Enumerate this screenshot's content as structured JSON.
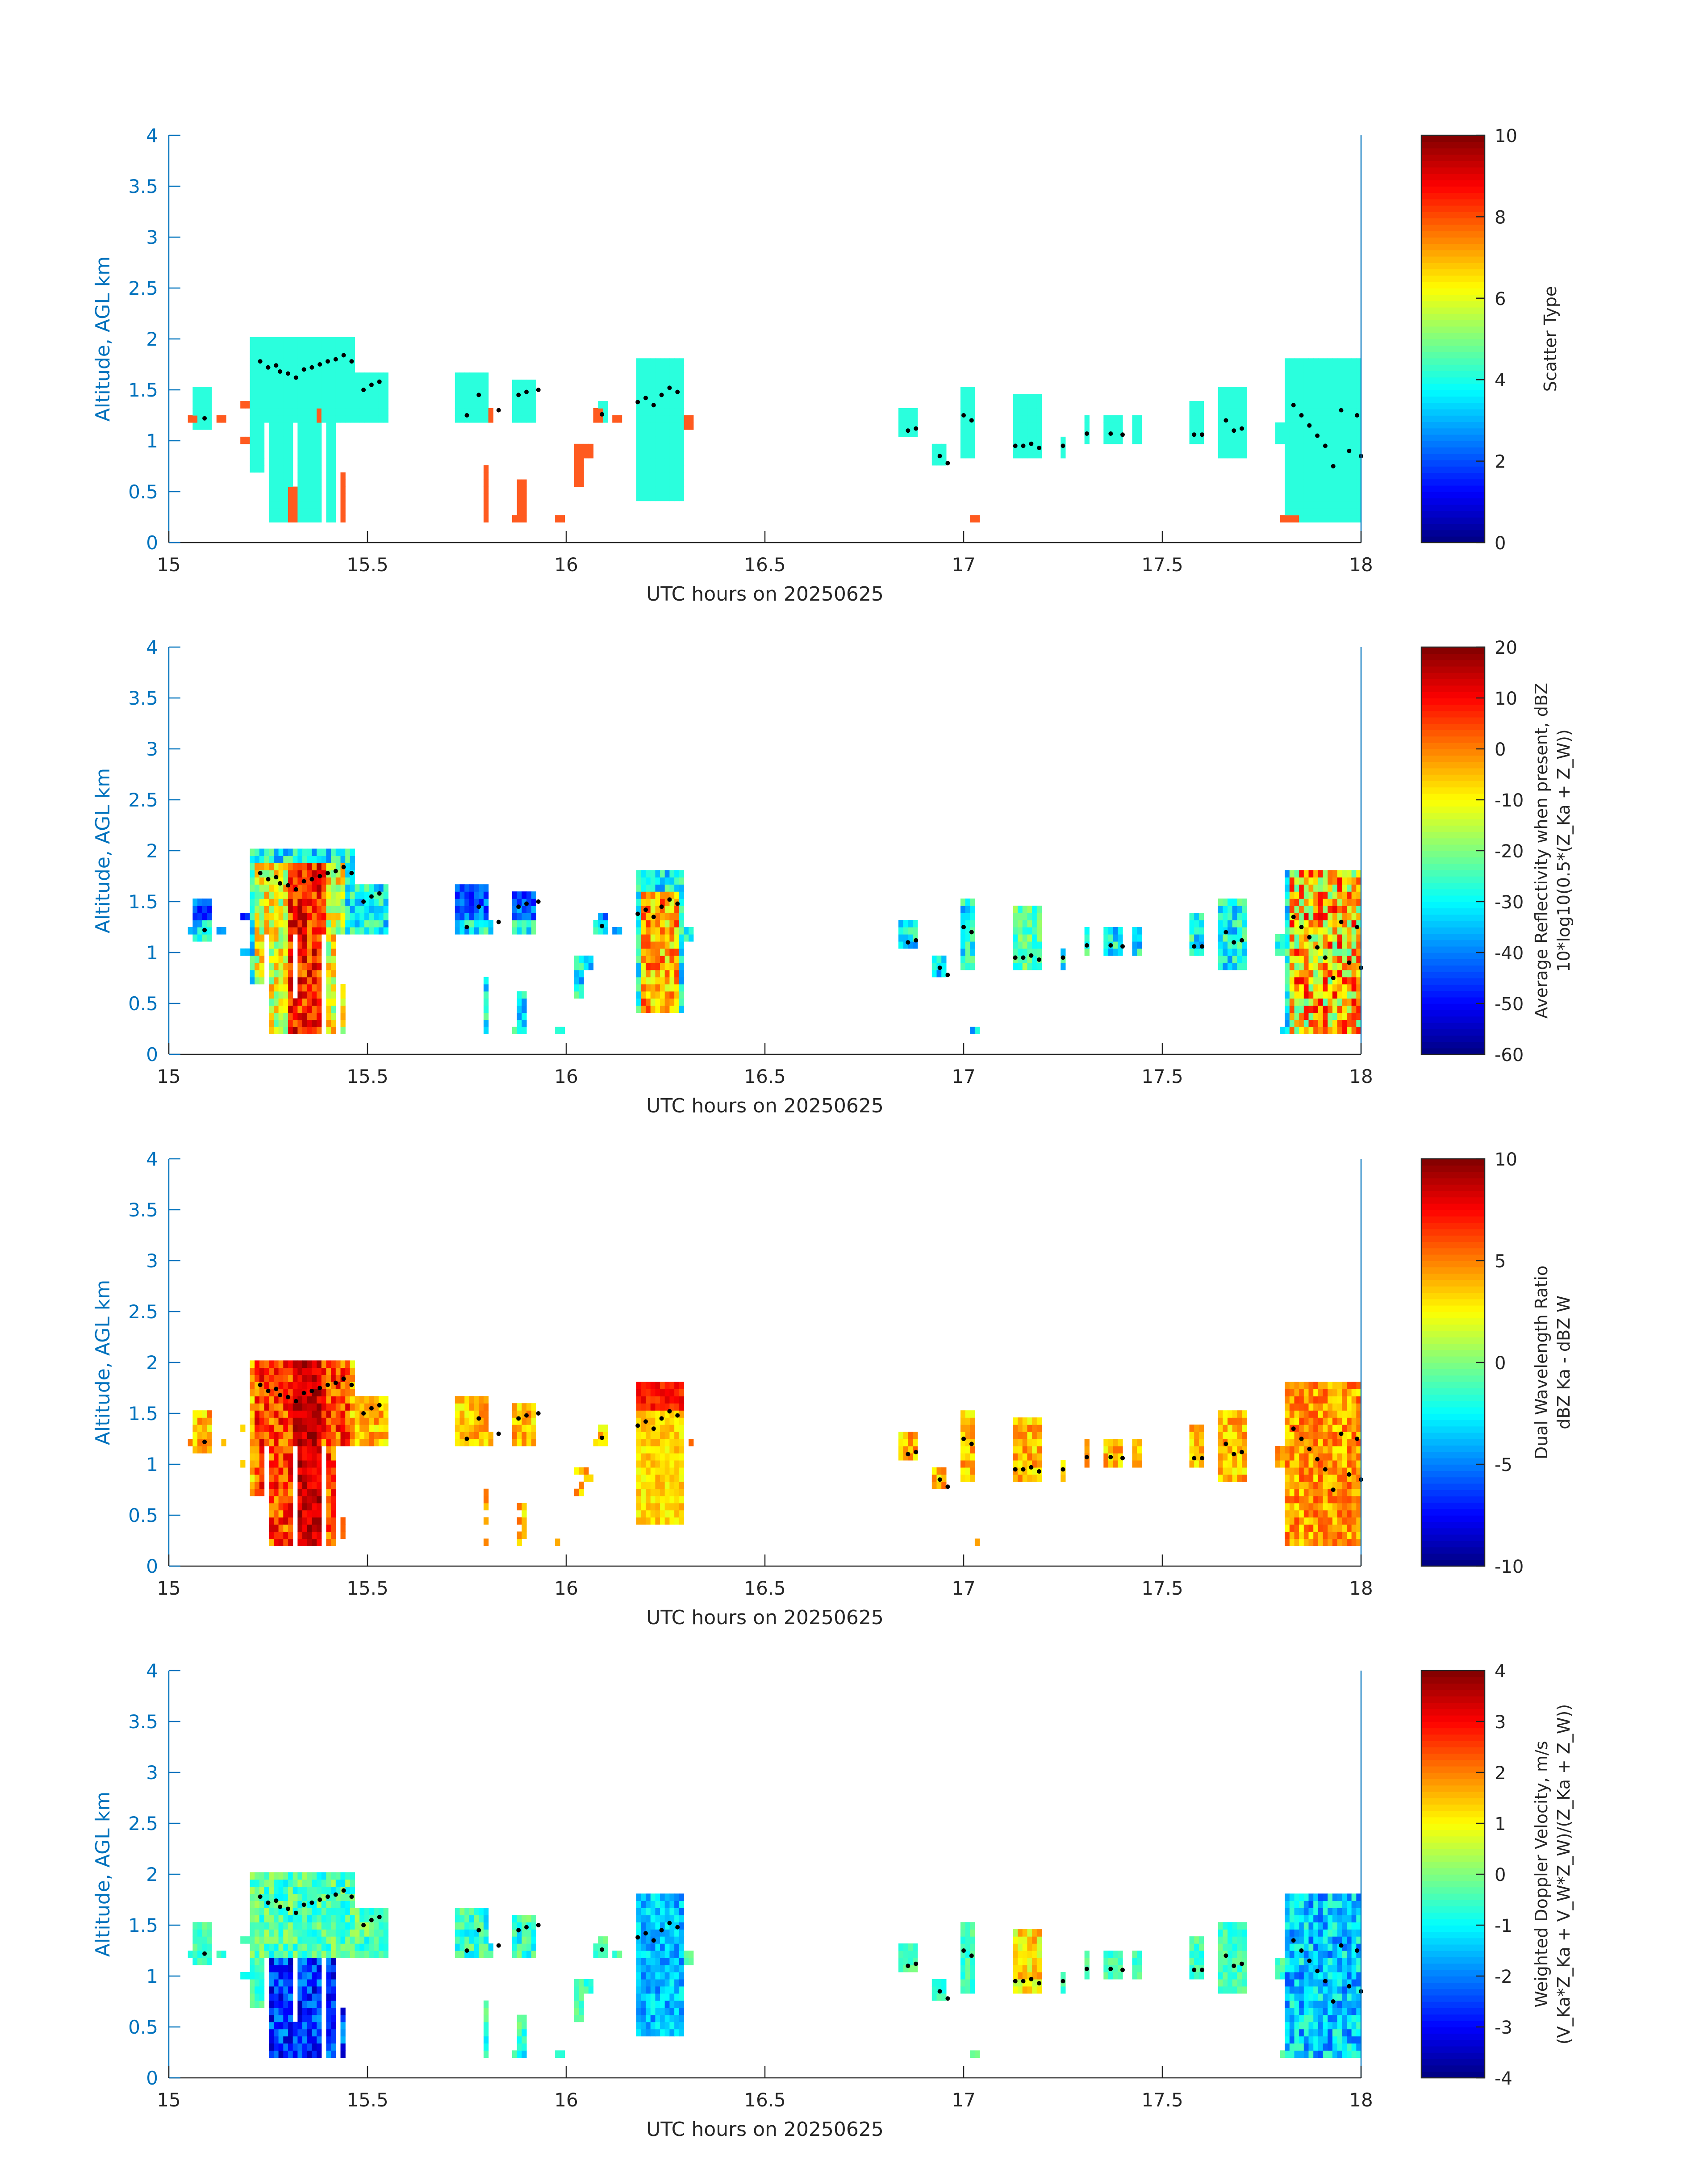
{
  "colors": {
    "axis_blue": "#0072bd",
    "axis_black": "#262626",
    "scatter_cloud": "#2affdd",
    "scatter_precip": "#ff5a1f",
    "marker": "#000000"
  },
  "colormap": "jet",
  "chart_data": [
    {
      "type": "heatmap",
      "id": "scatter",
      "xlabel": "UTC hours on 20250625",
      "ylabel": "Altitude, AGL km",
      "xlim": [
        15,
        18
      ],
      "ylim": [
        0,
        4
      ],
      "x_ticks": [
        "15",
        "15.5",
        "16",
        "16.5",
        "17",
        "17.5",
        "18"
      ],
      "y_ticks": [
        "0",
        "0.5",
        "1",
        "1.5",
        "2",
        "2.5",
        "3",
        "3.5",
        "4"
      ],
      "colorbar": {
        "label": "Scatter Type",
        "label_line2": "",
        "clim": [
          0,
          10
        ],
        "ticks": [
          "0",
          "2",
          "4",
          "6",
          "8",
          "10"
        ]
      }
    },
    {
      "type": "heatmap",
      "id": "reflectivity",
      "xlabel": "UTC hours on 20250625",
      "ylabel": "Altitude, AGL km",
      "xlim": [
        15,
        18
      ],
      "ylim": [
        0,
        4
      ],
      "x_ticks": [
        "15",
        "15.5",
        "16",
        "16.5",
        "17",
        "17.5",
        "18"
      ],
      "y_ticks": [
        "0",
        "0.5",
        "1",
        "1.5",
        "2",
        "2.5",
        "3",
        "3.5",
        "4"
      ],
      "colorbar": {
        "label": "Average Reflectivity when present, dBZ",
        "label_line2": "10*log10(0.5*(Z_Ka + Z_W))",
        "clim": [
          -60,
          20
        ],
        "ticks": [
          "-60",
          "-50",
          "-40",
          "-30",
          "-20",
          "-10",
          "0",
          "10",
          "20"
        ]
      }
    },
    {
      "type": "heatmap",
      "id": "dwr",
      "xlabel": "UTC hours on 20250625",
      "ylabel": "Altitude, AGL km",
      "xlim": [
        15,
        18
      ],
      "ylim": [
        0,
        4
      ],
      "x_ticks": [
        "15",
        "15.5",
        "16",
        "16.5",
        "17",
        "17.5",
        "18"
      ],
      "y_ticks": [
        "0",
        "0.5",
        "1",
        "1.5",
        "2",
        "2.5",
        "3",
        "3.5",
        "4"
      ],
      "colorbar": {
        "label": "Dual Wavelength Ratio",
        "label_line2": "dBZ Ka - dBZ W",
        "clim": [
          -10,
          10
        ],
        "ticks": [
          "-10",
          "-5",
          "0",
          "5",
          "10"
        ]
      }
    },
    {
      "type": "heatmap",
      "id": "velocity",
      "xlabel": "UTC hours on 20250625",
      "ylabel": "Altitude, AGL km",
      "xlim": [
        15,
        18
      ],
      "ylim": [
        0,
        4
      ],
      "x_ticks": [
        "15",
        "15.5",
        "16",
        "16.5",
        "17",
        "17.5",
        "18"
      ],
      "y_ticks": [
        "0",
        "0.5",
        "1",
        "1.5",
        "2",
        "2.5",
        "3",
        "3.5",
        "4"
      ],
      "colorbar": {
        "label": "Weighted Doppler Velocity, m/s",
        "label_line2": "(V_Ka*Z_Ka + V_W*Z_W)/(Z_Ka + Z_W))",
        "clim": [
          -4,
          4
        ],
        "ticks": [
          "-4",
          "-3",
          "-2",
          "-1",
          "0",
          "1",
          "2",
          "3",
          "4"
        ]
      }
    }
  ],
  "cloud_regions": [
    {
      "x0": 15.06,
      "x1": 15.11,
      "y0": 1.1,
      "y1": 1.5
    },
    {
      "x0": 15.2,
      "x1": 15.47,
      "y0": 1.2,
      "y1": 2.0
    },
    {
      "x0": 15.43,
      "x1": 15.55,
      "y0": 1.2,
      "y1": 1.65
    },
    {
      "x0": 15.21,
      "x1": 15.24,
      "y0": 0.7,
      "y1": 1.3
    },
    {
      "x0": 15.25,
      "x1": 15.31,
      "y0": 0.2,
      "y1": 1.3
    },
    {
      "x0": 15.33,
      "x1": 15.38,
      "y0": 0.2,
      "y1": 1.3
    },
    {
      "x0": 15.4,
      "x1": 15.42,
      "y0": 0.2,
      "y1": 1.3
    },
    {
      "x0": 15.72,
      "x1": 15.81,
      "y0": 1.15,
      "y1": 1.65
    },
    {
      "x0": 15.86,
      "x1": 15.92,
      "y0": 1.15,
      "y1": 1.6
    },
    {
      "x0": 16.08,
      "x1": 16.1,
      "y0": 1.15,
      "y1": 1.4
    },
    {
      "x0": 16.18,
      "x1": 16.3,
      "y0": 0.4,
      "y1": 1.8
    },
    {
      "x0": 16.84,
      "x1": 16.89,
      "y0": 1.05,
      "y1": 1.3
    },
    {
      "x0": 16.92,
      "x1": 16.96,
      "y0": 0.75,
      "y1": 0.95
    },
    {
      "x0": 16.99,
      "x1": 17.03,
      "y0": 0.85,
      "y1": 1.55
    },
    {
      "x0": 17.12,
      "x1": 17.2,
      "y0": 0.85,
      "y1": 1.45
    },
    {
      "x0": 17.24,
      "x1": 17.26,
      "y0": 0.85,
      "y1": 1.05
    },
    {
      "x0": 17.3,
      "x1": 17.32,
      "y0": 1.0,
      "y1": 1.25
    },
    {
      "x0": 17.35,
      "x1": 17.4,
      "y0": 1.0,
      "y1": 1.25
    },
    {
      "x0": 17.43,
      "x1": 17.45,
      "y0": 1.0,
      "y1": 1.25
    },
    {
      "x0": 17.57,
      "x1": 17.6,
      "y0": 1.0,
      "y1": 1.4
    },
    {
      "x0": 17.64,
      "x1": 17.71,
      "y0": 0.85,
      "y1": 1.55
    },
    {
      "x0": 17.78,
      "x1": 17.81,
      "y0": 1.0,
      "y1": 1.15
    },
    {
      "x0": 17.81,
      "x1": 18.0,
      "y0": 0.2,
      "y1": 1.8
    }
  ],
  "precip_regions": [
    {
      "x0": 15.05,
      "x1": 15.07,
      "y0": 1.15,
      "y1": 1.25
    },
    {
      "x0": 15.12,
      "x1": 15.14,
      "y0": 1.15,
      "y1": 1.25
    },
    {
      "x0": 15.18,
      "x1": 15.2,
      "y0": 1.3,
      "y1": 1.4
    },
    {
      "x0": 15.18,
      "x1": 15.2,
      "y0": 0.95,
      "y1": 1.05
    },
    {
      "x0": 15.37,
      "x1": 15.39,
      "y0": 1.15,
      "y1": 1.3
    },
    {
      "x0": 15.3,
      "x1": 15.32,
      "y0": 0.2,
      "y1": 0.55
    },
    {
      "x0": 15.43,
      "x1": 15.45,
      "y0": 0.2,
      "y1": 0.7
    },
    {
      "x0": 15.8,
      "x1": 15.82,
      "y0": 1.2,
      "y1": 1.35
    },
    {
      "x0": 15.79,
      "x1": 15.81,
      "y0": 0.2,
      "y1": 0.75
    },
    {
      "x0": 15.86,
      "x1": 15.88,
      "y0": 0.2,
      "y1": 0.3
    },
    {
      "x0": 15.88,
      "x1": 15.9,
      "y0": 0.2,
      "y1": 0.6
    },
    {
      "x0": 15.97,
      "x1": 16.0,
      "y0": 0.2,
      "y1": 0.3
    },
    {
      "x0": 16.02,
      "x1": 16.04,
      "y0": 0.55,
      "y1": 1.0
    },
    {
      "x0": 16.05,
      "x1": 16.07,
      "y0": 0.8,
      "y1": 0.95
    },
    {
      "x0": 16.07,
      "x1": 16.09,
      "y0": 1.15,
      "y1": 1.35
    },
    {
      "x0": 16.12,
      "x1": 16.14,
      "y0": 1.15,
      "y1": 1.25
    },
    {
      "x0": 16.3,
      "x1": 16.32,
      "y0": 1.1,
      "y1": 1.25
    },
    {
      "x0": 17.02,
      "x1": 17.04,
      "y0": 0.2,
      "y1": 0.3
    },
    {
      "x0": 17.8,
      "x1": 17.84,
      "y0": 0.2,
      "y1": 0.28
    }
  ],
  "markers": [
    [
      15.09,
      1.22
    ],
    [
      15.23,
      1.78
    ],
    [
      15.25,
      1.72
    ],
    [
      15.27,
      1.74
    ],
    [
      15.28,
      1.68
    ],
    [
      15.3,
      1.66
    ],
    [
      15.32,
      1.62
    ],
    [
      15.34,
      1.7
    ],
    [
      15.36,
      1.72
    ],
    [
      15.38,
      1.75
    ],
    [
      15.4,
      1.78
    ],
    [
      15.42,
      1.8
    ],
    [
      15.44,
      1.84
    ],
    [
      15.46,
      1.78
    ],
    [
      15.49,
      1.5
    ],
    [
      15.51,
      1.55
    ],
    [
      15.53,
      1.58
    ],
    [
      15.75,
      1.25
    ],
    [
      15.78,
      1.45
    ],
    [
      15.83,
      1.3
    ],
    [
      15.88,
      1.45
    ],
    [
      15.9,
      1.48
    ],
    [
      15.93,
      1.5
    ],
    [
      16.09,
      1.26
    ],
    [
      16.18,
      1.38
    ],
    [
      16.2,
      1.42
    ],
    [
      16.22,
      1.35
    ],
    [
      16.24,
      1.45
    ],
    [
      16.26,
      1.52
    ],
    [
      16.28,
      1.48
    ],
    [
      16.86,
      1.1
    ],
    [
      16.88,
      1.12
    ],
    [
      16.94,
      0.85
    ],
    [
      16.96,
      0.78
    ],
    [
      17.0,
      1.25
    ],
    [
      17.02,
      1.2
    ],
    [
      17.13,
      0.95
    ],
    [
      17.15,
      0.95
    ],
    [
      17.17,
      0.97
    ],
    [
      17.19,
      0.93
    ],
    [
      17.25,
      0.95
    ],
    [
      17.31,
      1.07
    ],
    [
      17.37,
      1.07
    ],
    [
      17.4,
      1.06
    ],
    [
      17.58,
      1.06
    ],
    [
      17.6,
      1.06
    ],
    [
      17.66,
      1.2
    ],
    [
      17.68,
      1.1
    ],
    [
      17.7,
      1.12
    ],
    [
      17.83,
      1.35
    ],
    [
      17.85,
      1.25
    ],
    [
      17.87,
      1.15
    ],
    [
      17.89,
      1.05
    ],
    [
      17.91,
      0.95
    ],
    [
      17.93,
      0.75
    ],
    [
      17.95,
      1.3
    ],
    [
      17.97,
      0.9
    ],
    [
      17.99,
      1.25
    ],
    [
      18.0,
      0.85
    ]
  ]
}
